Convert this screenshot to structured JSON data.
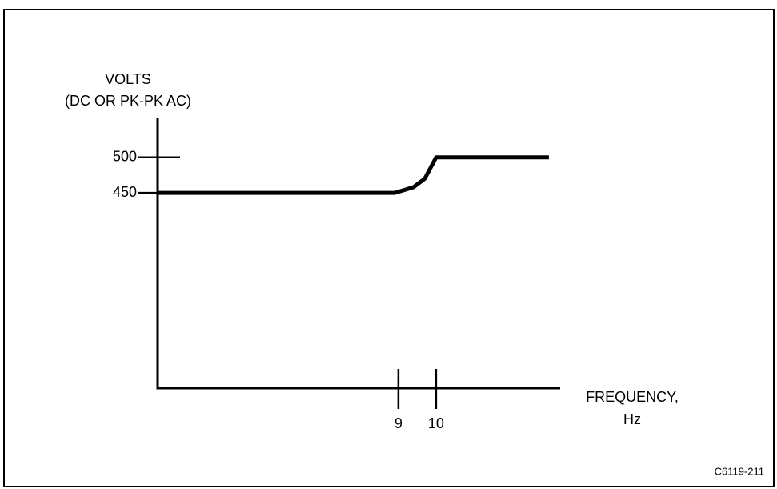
{
  "chart_data": {
    "type": "line",
    "y_label": [
      "VOLTS",
      "(DC OR PK-PK AC)"
    ],
    "x_label": [
      "FREQUENCY,",
      "Hz"
    ],
    "annotation": "C6119-211",
    "x": [
      2.6,
      8.9,
      9.4,
      9.7,
      10,
      13
    ],
    "series": [
      {
        "color": "#000000",
        "values": [
          450,
          450,
          458,
          470,
          500,
          500
        ]
      }
    ],
    "xlim": [
      2.6,
      13.3
    ],
    "xticks": [
      9,
      10
    ],
    "ylim": [
      175,
      555
    ],
    "yticks": [
      450,
      500
    ],
    "grid": false
  }
}
